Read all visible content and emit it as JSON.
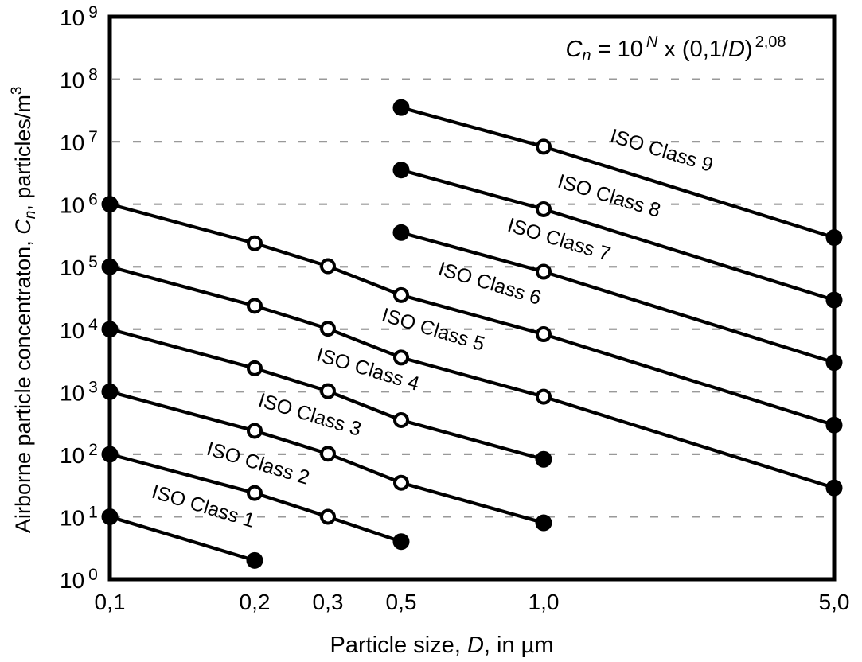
{
  "figure": {
    "background": "#ffffff",
    "formula": {
      "plain": "Cn = 10N x (0,1/D)2,08",
      "var": "C",
      "var_sub": "n",
      "eq": " = 10",
      "power": "N",
      "times_open": " x (0,1/",
      "d_var": "D",
      "close_paren": ")",
      "outer_exp": "2,08"
    }
  },
  "chart_data": {
    "type": "line",
    "title": "",
    "xlabel": {
      "plain": "Particle size, D, in µm",
      "pre": "Particle size, ",
      "var": "D",
      "post": ", in µm"
    },
    "ylabel": {
      "plain": "Airborne particle concentraton, Cn, particles/m3",
      "pre": "Airborne particle concentraton,  ",
      "var": "C",
      "var_sub": "n",
      "post": ",  particles/m",
      "sup": "3"
    },
    "x_scale": "log",
    "y_scale": "log",
    "xlim": [
      0.1,
      5
    ],
    "ylim": [
      1,
      1000000000
    ],
    "x_ticks": [
      {
        "value": 0.1,
        "label": "0,1"
      },
      {
        "value": 0.2,
        "label": "0,2"
      },
      {
        "value": 0.3,
        "label": "0,3"
      },
      {
        "value": 0.5,
        "label": "0,5"
      },
      {
        "value": 1,
        "label": "1,0"
      },
      {
        "value": 5,
        "label": "5,0"
      }
    ],
    "y_ticks": {
      "base": "10",
      "exponents": [
        9,
        8,
        7,
        6,
        5,
        4,
        3,
        2,
        1,
        0
      ]
    },
    "grid": {
      "horizontal_at_exponents": [
        1,
        2,
        3,
        4,
        5,
        6,
        7,
        8
      ],
      "style": "dashed",
      "color": "#999999"
    },
    "legend_position": "labels-on-lines",
    "series": [
      {
        "name": "ISO Class 1",
        "points": [
          {
            "D": 0.1,
            "Cn": 10,
            "marker": "filled"
          },
          {
            "D": 0.2,
            "Cn": 2,
            "marker": "filled"
          }
        ]
      },
      {
        "name": "ISO Class 2",
        "points": [
          {
            "D": 0.1,
            "Cn": 100,
            "marker": "filled"
          },
          {
            "D": 0.2,
            "Cn": 24,
            "marker": "open"
          },
          {
            "D": 0.3,
            "Cn": 10,
            "marker": "open"
          },
          {
            "D": 0.5,
            "Cn": 4,
            "marker": "filled"
          }
        ]
      },
      {
        "name": "ISO Class 3",
        "points": [
          {
            "D": 0.1,
            "Cn": 1000,
            "marker": "filled"
          },
          {
            "D": 0.2,
            "Cn": 237,
            "marker": "open"
          },
          {
            "D": 0.3,
            "Cn": 102,
            "marker": "open"
          },
          {
            "D": 0.5,
            "Cn": 35,
            "marker": "open"
          },
          {
            "D": 1,
            "Cn": 8,
            "marker": "filled"
          }
        ]
      },
      {
        "name": "ISO Class 4",
        "points": [
          {
            "D": 0.1,
            "Cn": 10000,
            "marker": "filled"
          },
          {
            "D": 0.2,
            "Cn": 2370,
            "marker": "open"
          },
          {
            "D": 0.3,
            "Cn": 1020,
            "marker": "open"
          },
          {
            "D": 0.5,
            "Cn": 352,
            "marker": "open"
          },
          {
            "D": 1,
            "Cn": 83,
            "marker": "filled"
          }
        ]
      },
      {
        "name": "ISO Class 5",
        "points": [
          {
            "D": 0.1,
            "Cn": 100000,
            "marker": "filled"
          },
          {
            "D": 0.2,
            "Cn": 23700,
            "marker": "open"
          },
          {
            "D": 0.3,
            "Cn": 10200,
            "marker": "open"
          },
          {
            "D": 0.5,
            "Cn": 3520,
            "marker": "open"
          },
          {
            "D": 1,
            "Cn": 832,
            "marker": "open"
          },
          {
            "D": 5,
            "Cn": 29,
            "marker": "filled"
          }
        ]
      },
      {
        "name": "ISO Class 6",
        "points": [
          {
            "D": 0.1,
            "Cn": 1000000,
            "marker": "filled"
          },
          {
            "D": 0.2,
            "Cn": 237000,
            "marker": "open"
          },
          {
            "D": 0.3,
            "Cn": 102000,
            "marker": "open"
          },
          {
            "D": 0.5,
            "Cn": 35200,
            "marker": "open"
          },
          {
            "D": 1,
            "Cn": 8320,
            "marker": "open"
          },
          {
            "D": 5,
            "Cn": 293,
            "marker": "filled"
          }
        ]
      },
      {
        "name": "ISO Class 7",
        "points": [
          {
            "D": 0.5,
            "Cn": 352000,
            "marker": "filled"
          },
          {
            "D": 1,
            "Cn": 83200,
            "marker": "open"
          },
          {
            "D": 5,
            "Cn": 2930,
            "marker": "filled"
          }
        ]
      },
      {
        "name": "ISO Class 8",
        "points": [
          {
            "D": 0.5,
            "Cn": 3520000,
            "marker": "filled"
          },
          {
            "D": 1,
            "Cn": 832000,
            "marker": "open"
          },
          {
            "D": 5,
            "Cn": 29300,
            "marker": "filled"
          }
        ]
      },
      {
        "name": "ISO Class 9",
        "points": [
          {
            "D": 0.5,
            "Cn": 35200000,
            "marker": "filled"
          },
          {
            "D": 1,
            "Cn": 8320000,
            "marker": "open"
          },
          {
            "D": 5,
            "Cn": 293000,
            "marker": "filled"
          }
        ]
      }
    ],
    "colors": {
      "line": "#000000",
      "marker_fill": "#000000",
      "marker_open_fill": "#ffffff",
      "grid": "#999999",
      "frame": "#000000",
      "text": "#000000"
    }
  }
}
